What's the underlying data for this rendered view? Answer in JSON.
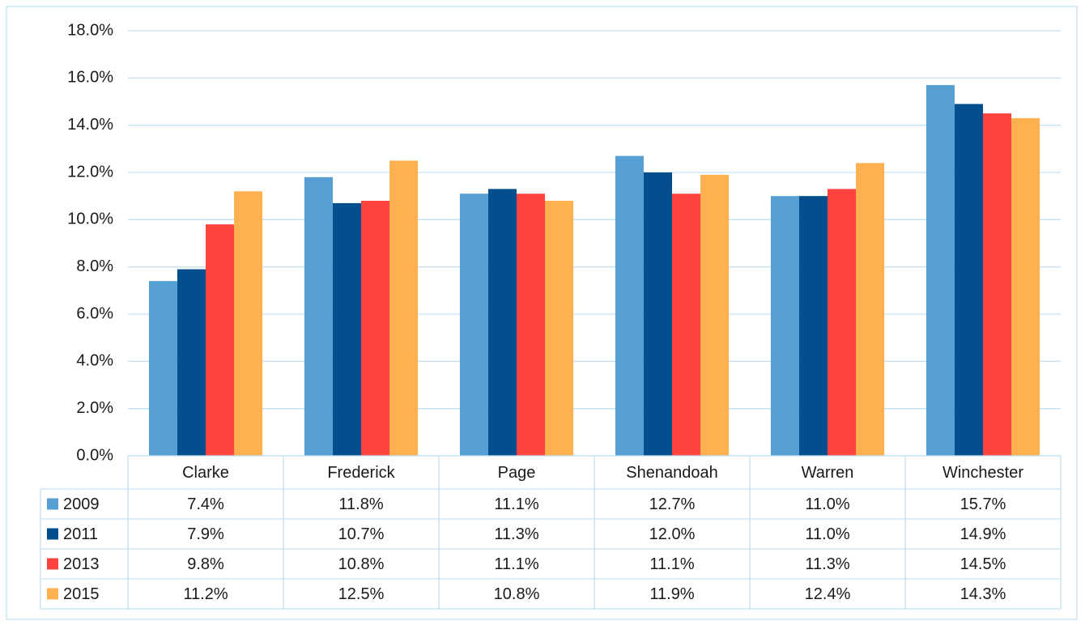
{
  "chart_data": {
    "type": "bar",
    "categories": [
      "Clarke",
      "Frederick",
      "Page",
      "Shenandoah",
      "Warren",
      "Winchester"
    ],
    "series": [
      {
        "name": "2009",
        "color": "#569fd3",
        "values": [
          7.4,
          11.8,
          11.1,
          12.7,
          11.0,
          15.7
        ],
        "value_labels": [
          "7.4%",
          "11.8%",
          "11.1%",
          "12.7%",
          "11.0%",
          "15.7%"
        ]
      },
      {
        "name": "2011",
        "color": "#034f8e",
        "values": [
          7.9,
          10.7,
          11.3,
          12.0,
          11.0,
          14.9
        ],
        "value_labels": [
          "7.9%",
          "10.7%",
          "11.3%",
          "12.0%",
          "11.0%",
          "14.9%"
        ]
      },
      {
        "name": "2013",
        "color": "#ff443f",
        "values": [
          9.8,
          10.8,
          11.1,
          11.1,
          11.3,
          14.5
        ],
        "value_labels": [
          "9.8%",
          "10.8%",
          "11.1%",
          "11.1%",
          "11.3%",
          "14.5%"
        ]
      },
      {
        "name": "2015",
        "color": "#ffb04f",
        "values": [
          11.2,
          12.5,
          10.8,
          11.9,
          12.4,
          14.3
        ],
        "value_labels": [
          "11.2%",
          "12.5%",
          "10.8%",
          "11.9%",
          "12.4%",
          "14.3%"
        ]
      }
    ],
    "ylim": [
      0,
      18
    ],
    "yticks": [
      {
        "value": 0,
        "label": "0.0%"
      },
      {
        "value": 2,
        "label": "2.0%"
      },
      {
        "value": 4,
        "label": "4.0%"
      },
      {
        "value": 6,
        "label": "6.0%"
      },
      {
        "value": 8,
        "label": "8.0%"
      },
      {
        "value": 10,
        "label": "10.0%"
      },
      {
        "value": 12,
        "label": "12.0%"
      },
      {
        "value": 14,
        "label": "14.0%"
      },
      {
        "value": 16,
        "label": "16.0%"
      },
      {
        "value": 18,
        "label": "18.0%"
      }
    ],
    "grid": true,
    "data_table": true
  }
}
